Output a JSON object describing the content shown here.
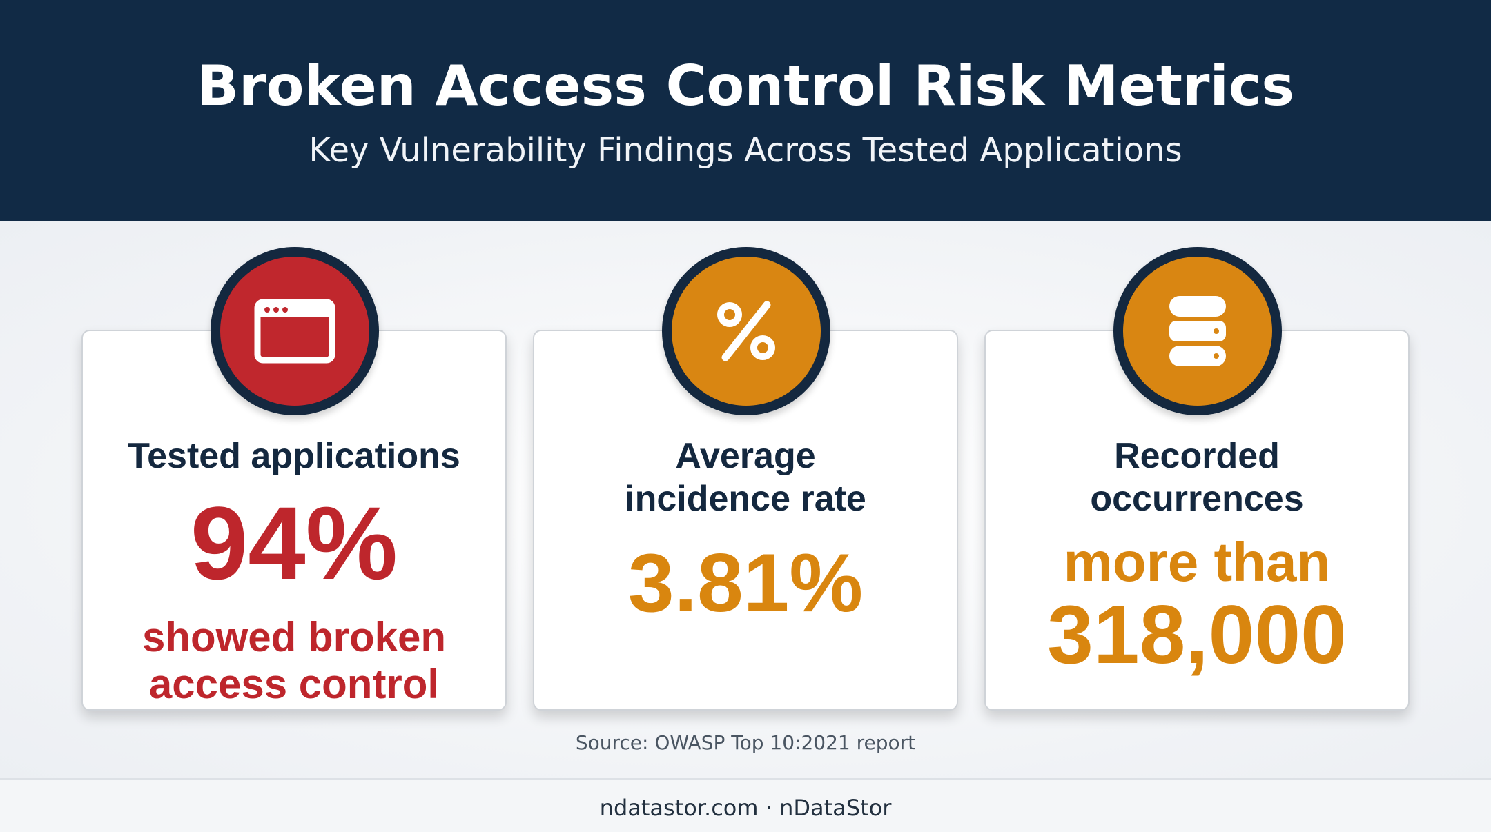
{
  "header": {
    "title": "Broken Access Control Risk Metrics",
    "subtitle": "Key Vulnerability Findings Across Tested Applications"
  },
  "cards": [
    {
      "icon": "browser-window-icon",
      "label": "Tested applications",
      "value": "94%",
      "subtext_line1": "showed broken",
      "subtext_line2": "access control",
      "accent_color": "#c0272d"
    },
    {
      "icon": "percent-icon",
      "label_line1": "Average",
      "label_line2": "incidence rate",
      "value": "3.81%",
      "accent_color": "#d98612"
    },
    {
      "icon": "database-icon",
      "label_line1": "Recorded",
      "label_line2": "occurrences",
      "prefix": "more than",
      "value": "318,000",
      "accent_color": "#d98612"
    }
  ],
  "source": "Source: OWASP Top 10:2021 report",
  "footer": {
    "site": "ndatastor.com · nDataStor"
  },
  "colors": {
    "header_bg": "#112a45",
    "badge_ring": "#14283f"
  }
}
